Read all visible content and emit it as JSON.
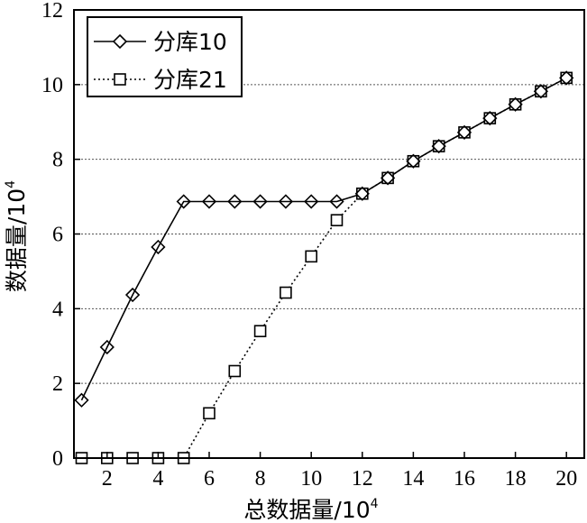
{
  "chart_data": {
    "type": "line",
    "xlabel": "总数据量/10",
    "xlabel_exp": "4",
    "ylabel": "数据量/10",
    "ylabel_exp": "4",
    "xlim": [
      0.7,
      20.7
    ],
    "ylim": [
      0,
      12
    ],
    "xticks": [
      2,
      4,
      6,
      8,
      10,
      12,
      14,
      16,
      18,
      20
    ],
    "yticks": [
      0,
      2,
      4,
      6,
      8,
      10,
      12
    ],
    "grid": "horizontal dotted",
    "legend_position": "top-left",
    "series": [
      {
        "name": "分库10",
        "marker": "diamond",
        "line": "solid",
        "x": [
          1,
          2,
          3,
          4,
          5,
          6,
          7,
          8,
          9,
          10,
          11,
          12,
          13,
          14,
          15,
          16,
          17,
          18,
          19,
          20
        ],
        "y": [
          1.55,
          2.97,
          4.37,
          5.65,
          6.87,
          6.87,
          6.87,
          6.87,
          6.87,
          6.87,
          6.87,
          7.08,
          7.5,
          7.95,
          8.35,
          8.72,
          9.1,
          9.47,
          9.82,
          10.18
        ]
      },
      {
        "name": "分库21",
        "marker": "square",
        "line": "dotted",
        "x": [
          1,
          2,
          3,
          4,
          5,
          6,
          7,
          8,
          9,
          10,
          11,
          12,
          13,
          14,
          15,
          16,
          17,
          18,
          19,
          20
        ],
        "y": [
          0,
          0,
          0,
          0,
          0,
          1.2,
          2.33,
          3.4,
          4.43,
          5.4,
          6.37,
          7.08,
          7.5,
          7.95,
          8.35,
          8.72,
          9.1,
          9.47,
          9.82,
          10.18
        ]
      }
    ]
  }
}
